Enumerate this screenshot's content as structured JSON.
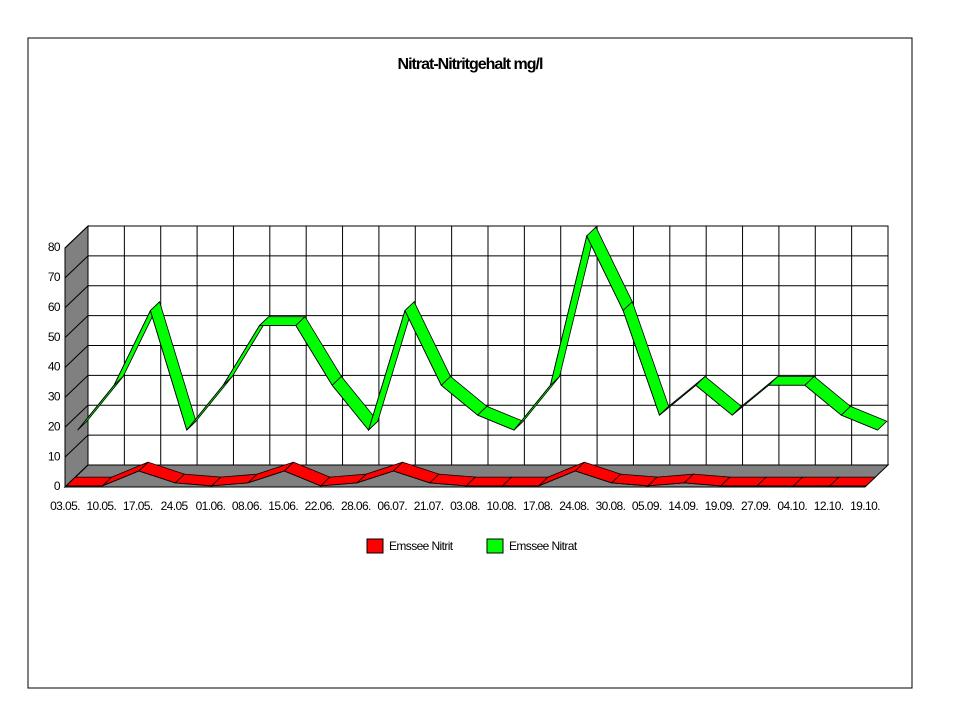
{
  "chart_data": {
    "type": "line3d",
    "title": "Nitrat-Nitritgehalt mg/l",
    "categories": [
      "03.05.",
      "10.05.",
      "17.05.",
      "24.05",
      "01.06.",
      "08.06.",
      "15.06.",
      "22.06.",
      "28.06.",
      "06.07.",
      "21.07.",
      "03.08.",
      "10.08.",
      "17.08.",
      "24.08.",
      "30.08.",
      "05.09.",
      "14.09.",
      "19.09.",
      "27.09.",
      "04.10.",
      "12.10.",
      "19.10."
    ],
    "series": [
      {
        "name": "Emssee Nitrit",
        "color": "#ff0000",
        "values": [
          0,
          0,
          5,
          1,
          0,
          1,
          5,
          0,
          1,
          5,
          1,
          0,
          0,
          0,
          5,
          1,
          0,
          1,
          0,
          0,
          0,
          0,
          0
        ]
      },
      {
        "name": "Emssee Nitrat",
        "color": "#00ff00",
        "values": [
          15,
          30,
          55,
          15,
          30,
          50,
          50,
          30,
          15,
          55,
          30,
          20,
          15,
          30,
          80,
          55,
          20,
          30,
          20,
          30,
          30,
          20,
          15
        ]
      }
    ],
    "ylim": [
      0,
      80
    ],
    "yticks": [
      0,
      10,
      20,
      30,
      40,
      50,
      60,
      70,
      80
    ],
    "grid": true,
    "legend": "bottom"
  }
}
